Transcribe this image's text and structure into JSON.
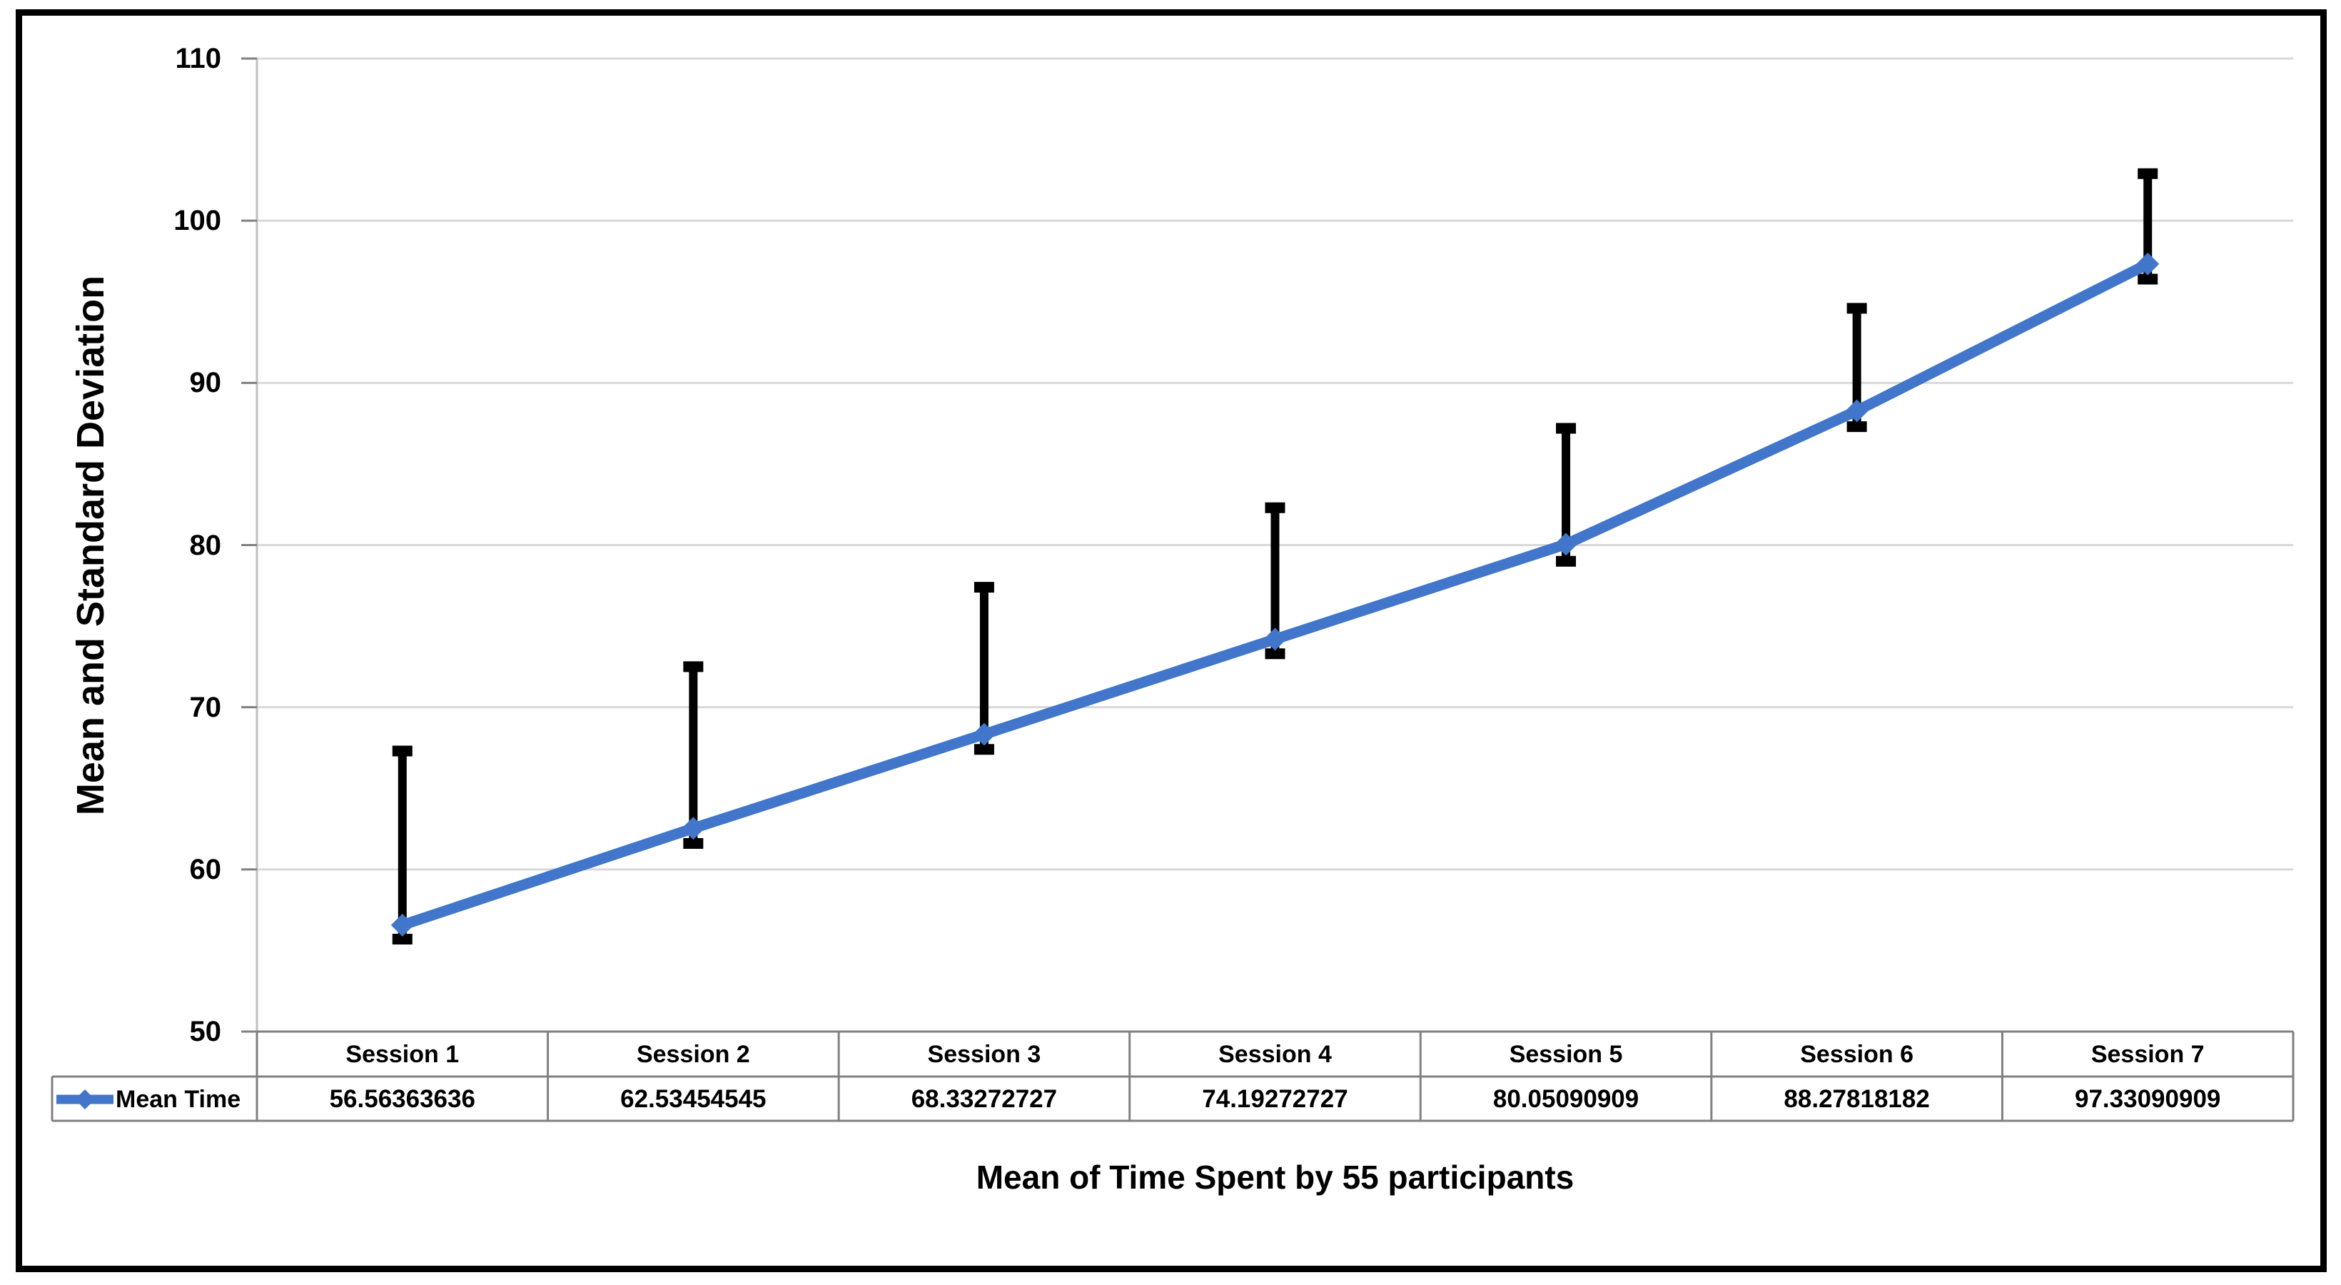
{
  "chart_data": {
    "type": "line",
    "title": "",
    "xlabel": "Mean of Time Spent by 55 participants",
    "ylabel": "Mean and Standard Deviation",
    "ylim": [
      50,
      110
    ],
    "ytick_interval": 10,
    "ytick_labels": [
      "110",
      "100",
      "90",
      "80",
      "70",
      "60",
      "50"
    ],
    "grid": "horizontal-major",
    "legend_position": "data-table-left",
    "categories": [
      "Session 1",
      "Session 2",
      "Session 3",
      "Session 4",
      "Session 5",
      "Session 6",
      "Session 7"
    ],
    "series": [
      {
        "name": "Mean Time",
        "marker": "diamond",
        "color": "#4176CA",
        "values": [
          56.56363636,
          62.53454545,
          68.33272727,
          74.19272727,
          80.05090909,
          88.27818182,
          97.33090909
        ],
        "error_bars": {
          "color": "#000000",
          "upper": [
            67.3,
            72.5,
            77.4,
            82.3,
            87.2,
            94.6,
            102.9
          ],
          "lower": [
            55.7,
            61.6,
            67.4,
            73.3,
            79.0,
            87.3,
            96.4
          ]
        }
      }
    ]
  },
  "colors": {
    "gridline": "#D9D9D9",
    "axis_line": "#BFBFBF",
    "table_border": "#808080",
    "tick": "#808080",
    "error_bar": "#000000",
    "outer_border": "#000000",
    "text": "#000000"
  }
}
